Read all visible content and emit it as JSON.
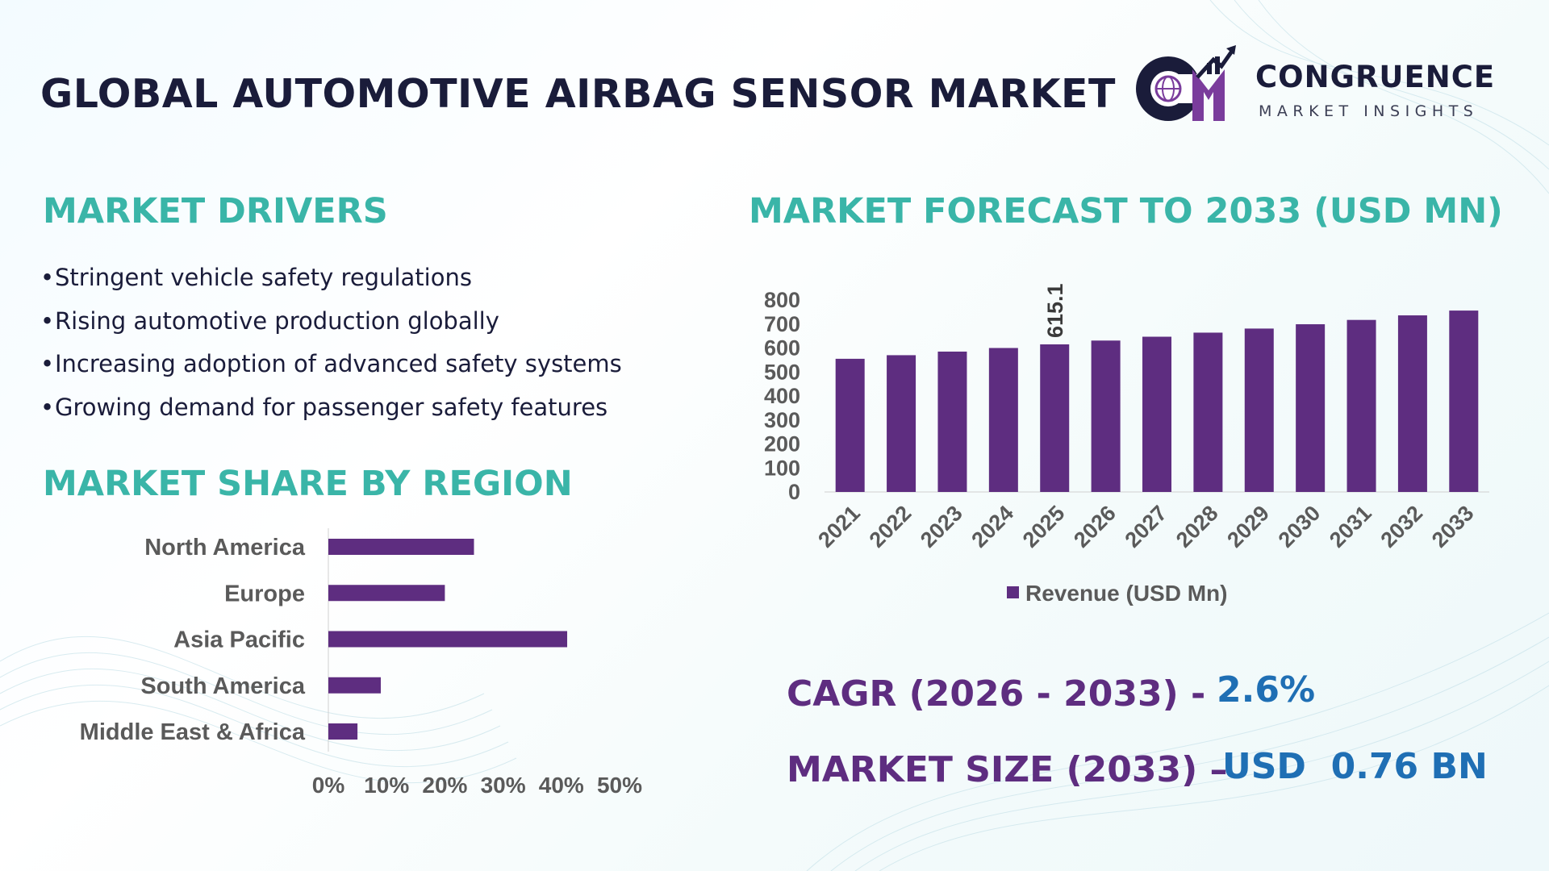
{
  "header": {
    "title": "GLOBAL AUTOMOTIVE AIRBAG SENSOR MARKET",
    "logo_name": "CONGRUENCE",
    "logo_tagline": "MARKET INSIGHTS"
  },
  "drivers": {
    "heading": "MARKET DRIVERS",
    "bullet": "•",
    "items": [
      "Stringent vehicle safety regulations",
      "Rising automotive production globally",
      "Increasing adoption of advanced safety systems",
      "Growing demand for passenger safety features"
    ]
  },
  "region": {
    "heading": "MARKET SHARE BY REGION"
  },
  "forecast": {
    "heading": "MARKET FORECAST TO 2033 (USD MN)"
  },
  "stats": {
    "cagr_label": "CAGR (2026 - 2033) -",
    "cagr_value": "2.6%",
    "size_label": "MARKET SIZE (2033) –",
    "size_value": "USD  0.76 BN"
  },
  "colors": {
    "bar": "#5e2d80",
    "heading": "#3ab5a8",
    "title": "#1a1c3a",
    "stat_value": "#1f6fb4",
    "axis_text": "#5a5a5a"
  },
  "icons": [
    "congruence-logo-icon",
    "globe-icon",
    "growth-arrow-icon",
    "legend-square-icon"
  ],
  "chart_data": [
    {
      "type": "bar",
      "orientation": "vertical",
      "categories": [
        "2021",
        "2022",
        "2023",
        "2024",
        "2025",
        "2026",
        "2027",
        "2028",
        "2029",
        "2030",
        "2031",
        "2032",
        "2033"
      ],
      "series": [
        {
          "name": "Revenue (USD Mn)",
          "values": [
            555,
            570,
            585,
            600,
            615.1,
            631,
            647,
            664,
            681,
            699,
            717,
            736,
            756
          ]
        }
      ],
      "data_labels": [
        {
          "category": "2025",
          "text": "615.1"
        }
      ],
      "yticks": [
        "0",
        "100",
        "200",
        "300",
        "400",
        "500",
        "600",
        "700",
        "800"
      ],
      "ylim": [
        0,
        800
      ],
      "legend": "bottom",
      "grid": false,
      "title": "",
      "xlabel": "",
      "ylabel": ""
    },
    {
      "type": "bar",
      "orientation": "horizontal",
      "categories": [
        "North America",
        "Europe",
        "Asia Pacific",
        "South America",
        "Middle East & Africa"
      ],
      "values": [
        25,
        20,
        41,
        9,
        5
      ],
      "xticks": [
        "0%",
        "10%",
        "20%",
        "30%",
        "40%",
        "50%"
      ],
      "xlim": [
        0,
        50
      ],
      "grid": false,
      "title": "",
      "xlabel": "",
      "ylabel": ""
    }
  ]
}
